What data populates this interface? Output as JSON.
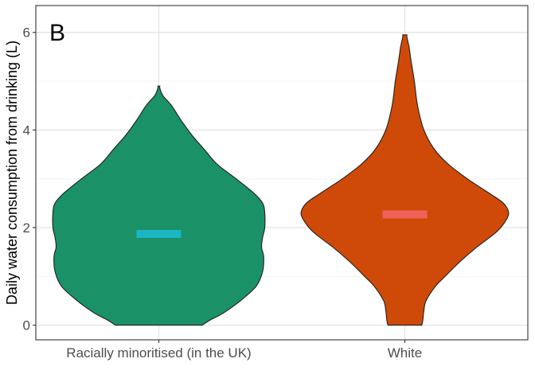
{
  "chart_data": {
    "type": "violin",
    "panel_label": "B",
    "xlabel": "",
    "ylabel": "Daily water consumption from drinking (L)",
    "ylim": [
      -0.3,
      6.55
    ],
    "yticks": [
      0,
      2,
      4,
      6
    ],
    "grid": true,
    "legend": "none",
    "categories": [
      "Racially minoritised (in the UK)",
      "White"
    ],
    "series": [
      {
        "category": "Racially minoritised (in the UK)",
        "fill": "#1B9168",
        "median": 1.87,
        "median_color": "#1BB5C4",
        "range": [
          0,
          4.9
        ],
        "density": [
          [
            0.0,
            0.41
          ],
          [
            0.1,
            0.48
          ],
          [
            0.25,
            0.61
          ],
          [
            0.5,
            0.77
          ],
          [
            0.8,
            0.92
          ],
          [
            1.1,
            0.98
          ],
          [
            1.4,
            0.99
          ],
          [
            1.6,
            0.97
          ],
          [
            1.8,
            0.98
          ],
          [
            2.0,
            1.0
          ],
          [
            2.3,
            1.0
          ],
          [
            2.5,
            0.98
          ],
          [
            2.7,
            0.9
          ],
          [
            3.0,
            0.73
          ],
          [
            3.3,
            0.55
          ],
          [
            3.6,
            0.43
          ],
          [
            3.9,
            0.31
          ],
          [
            4.2,
            0.21
          ],
          [
            4.5,
            0.12
          ],
          [
            4.7,
            0.04
          ],
          [
            4.85,
            0.01
          ],
          [
            4.9,
            0.01
          ]
        ]
      },
      {
        "category": "White",
        "fill": "#CF4A08",
        "median": 2.27,
        "median_color": "#F2605A",
        "range": [
          0,
          5.95
        ],
        "density": [
          [
            0.0,
            0.16
          ],
          [
            0.1,
            0.17
          ],
          [
            0.3,
            0.18
          ],
          [
            0.5,
            0.2
          ],
          [
            0.8,
            0.29
          ],
          [
            1.0,
            0.38
          ],
          [
            1.3,
            0.52
          ],
          [
            1.6,
            0.68
          ],
          [
            1.9,
            0.86
          ],
          [
            2.1,
            0.94
          ],
          [
            2.3,
            0.98
          ],
          [
            2.5,
            0.93
          ],
          [
            2.7,
            0.8
          ],
          [
            3.0,
            0.59
          ],
          [
            3.3,
            0.41
          ],
          [
            3.6,
            0.28
          ],
          [
            4.0,
            0.18
          ],
          [
            4.5,
            0.12
          ],
          [
            5.0,
            0.09
          ],
          [
            5.4,
            0.06
          ],
          [
            5.7,
            0.04
          ],
          [
            5.9,
            0.02
          ],
          [
            5.95,
            0.02
          ]
        ]
      }
    ]
  }
}
